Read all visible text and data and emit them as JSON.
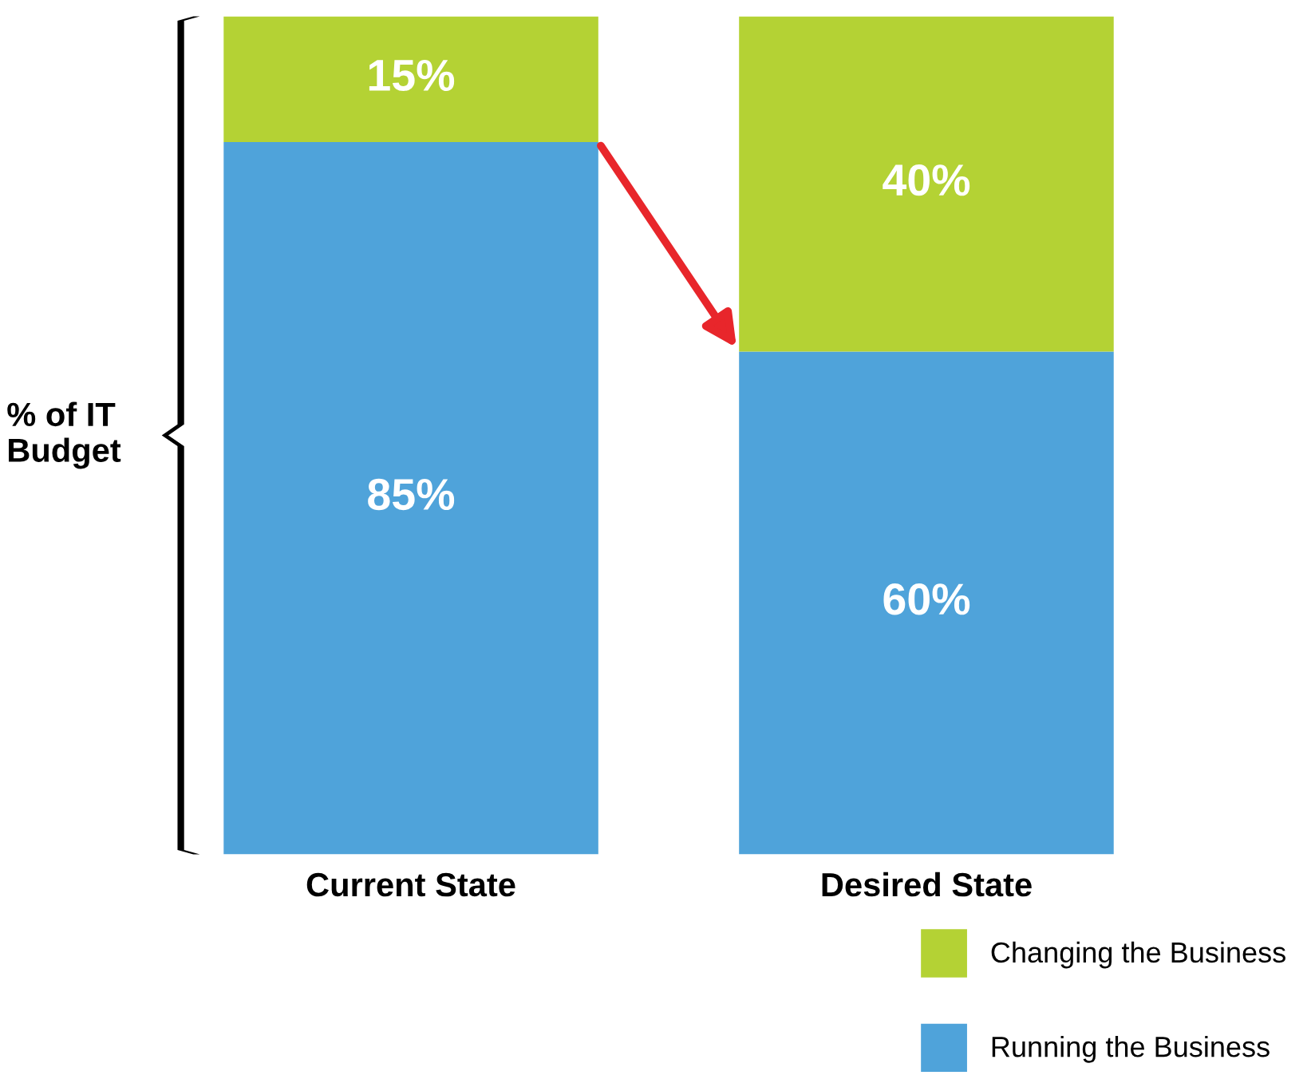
{
  "chart_data": {
    "type": "bar",
    "stacked": true,
    "ylabel": "% of IT Budget",
    "categories": [
      "Current State",
      "Desired State"
    ],
    "series": [
      {
        "name": "Running the Business",
        "color": "#4fa3da",
        "values": [
          85,
          60
        ],
        "value_labels": [
          "85%",
          "60%"
        ]
      },
      {
        "name": "Changing the Business",
        "color": "#b4d234",
        "values": [
          15,
          40
        ],
        "value_labels": [
          "15%",
          "40%"
        ]
      }
    ],
    "ylim": [
      0,
      100
    ],
    "legend": "bottom right",
    "grid": false
  }
}
